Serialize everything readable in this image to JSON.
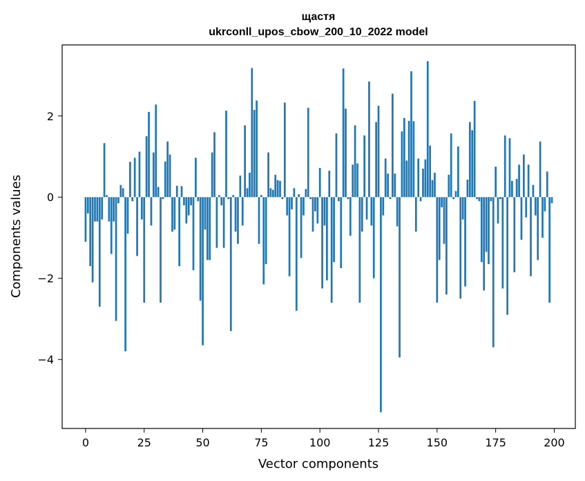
{
  "chart_data": {
    "type": "bar",
    "title": "щастя",
    "subtitle": "ukrconll_upos_cbow_200_10_2022 model",
    "xlabel": "Vector components",
    "ylabel": "Components values",
    "xlim": [
      -10,
      209
    ],
    "ylim": [
      -5.7,
      3.75
    ],
    "x_ticks": [
      0,
      25,
      50,
      75,
      100,
      125,
      150,
      175,
      200
    ],
    "y_ticks": [
      -4,
      -2,
      0,
      2
    ],
    "y_tick_labels": [
      "−4",
      "−2",
      "0",
      "2"
    ],
    "grid": false,
    "bar_color": "#1f77b4",
    "values": [
      -1.1,
      -0.4,
      -1.7,
      -2.1,
      -0.6,
      -0.6,
      -2.7,
      -0.55,
      1.33,
      0.05,
      -0.6,
      -1.4,
      -0.6,
      -3.05,
      -0.15,
      0.3,
      0.22,
      -3.8,
      -0.9,
      0.87,
      -0.1,
      0.97,
      -1.45,
      1.12,
      -0.55,
      -2.6,
      1.5,
      2.1,
      -0.7,
      1.1,
      2.28,
      0.25,
      -2.6,
      -0.05,
      0.88,
      1.37,
      1.05,
      -0.85,
      -0.8,
      0.28,
      -1.7,
      0.27,
      -0.2,
      -0.65,
      -0.45,
      -0.2,
      -1.8,
      0.97,
      -0.1,
      -2.55,
      -3.65,
      -0.8,
      -1.55,
      -1.55,
      1.1,
      1.6,
      -1.25,
      0.05,
      -0.2,
      -1.25,
      2.13,
      -0.05,
      -3.3,
      0.05,
      -0.85,
      -1.15,
      0.53,
      -0.7,
      1.77,
      0.22,
      0.6,
      3.18,
      2.15,
      2.38,
      -1.15,
      0.05,
      -2.15,
      -1.65,
      1.1,
      0.22,
      0.18,
      0.55,
      0.42,
      0.4,
      -0.05,
      2.33,
      -0.45,
      -1.95,
      -0.3,
      0.22,
      -2.8,
      0.07,
      -1.5,
      -0.45,
      0.2,
      2.2,
      -0.05,
      -0.85,
      -0.35,
      -0.65,
      0.72,
      -2.25,
      -0.7,
      -2.05,
      0.65,
      -2.6,
      -1.6,
      1.57,
      -0.1,
      -1.75,
      3.17,
      2.18,
      -0.05,
      -0.95,
      0.8,
      1.77,
      0.83,
      -2.6,
      -0.85,
      1.52,
      -0.55,
      2.85,
      -0.7,
      -2.0,
      1.85,
      2.25,
      -5.3,
      -0.45,
      0.95,
      0.58,
      -0.05,
      2.55,
      0.58,
      -0.72,
      -3.95,
      1.62,
      1.95,
      0.9,
      1.88,
      3.1,
      1.87,
      -0.85,
      0.95,
      -0.1,
      0.7,
      0.93,
      3.35,
      1.27,
      0.42,
      0.6,
      -2.6,
      -1.55,
      -0.25,
      -1.15,
      -2.4,
      0.55,
      1.57,
      -0.05,
      0.15,
      1.25,
      -2.5,
      -0.55,
      -2.2,
      0.43,
      1.85,
      1.65,
      2.37,
      -0.05,
      -0.1,
      -1.6,
      -2.3,
      -1.35,
      -1.65,
      -0.1,
      -3.7,
      0.75,
      -0.65,
      -0.05,
      -2.25,
      1.52,
      -2.9,
      1.45,
      0.4,
      -1.85,
      0.45,
      0.8,
      -1.05,
      1.05,
      -0.5,
      0.8,
      -1.95,
      0.3,
      -0.45,
      -1.55,
      1.37,
      -1.0,
      -0.35,
      0.63,
      -2.6,
      -0.15
    ]
  }
}
